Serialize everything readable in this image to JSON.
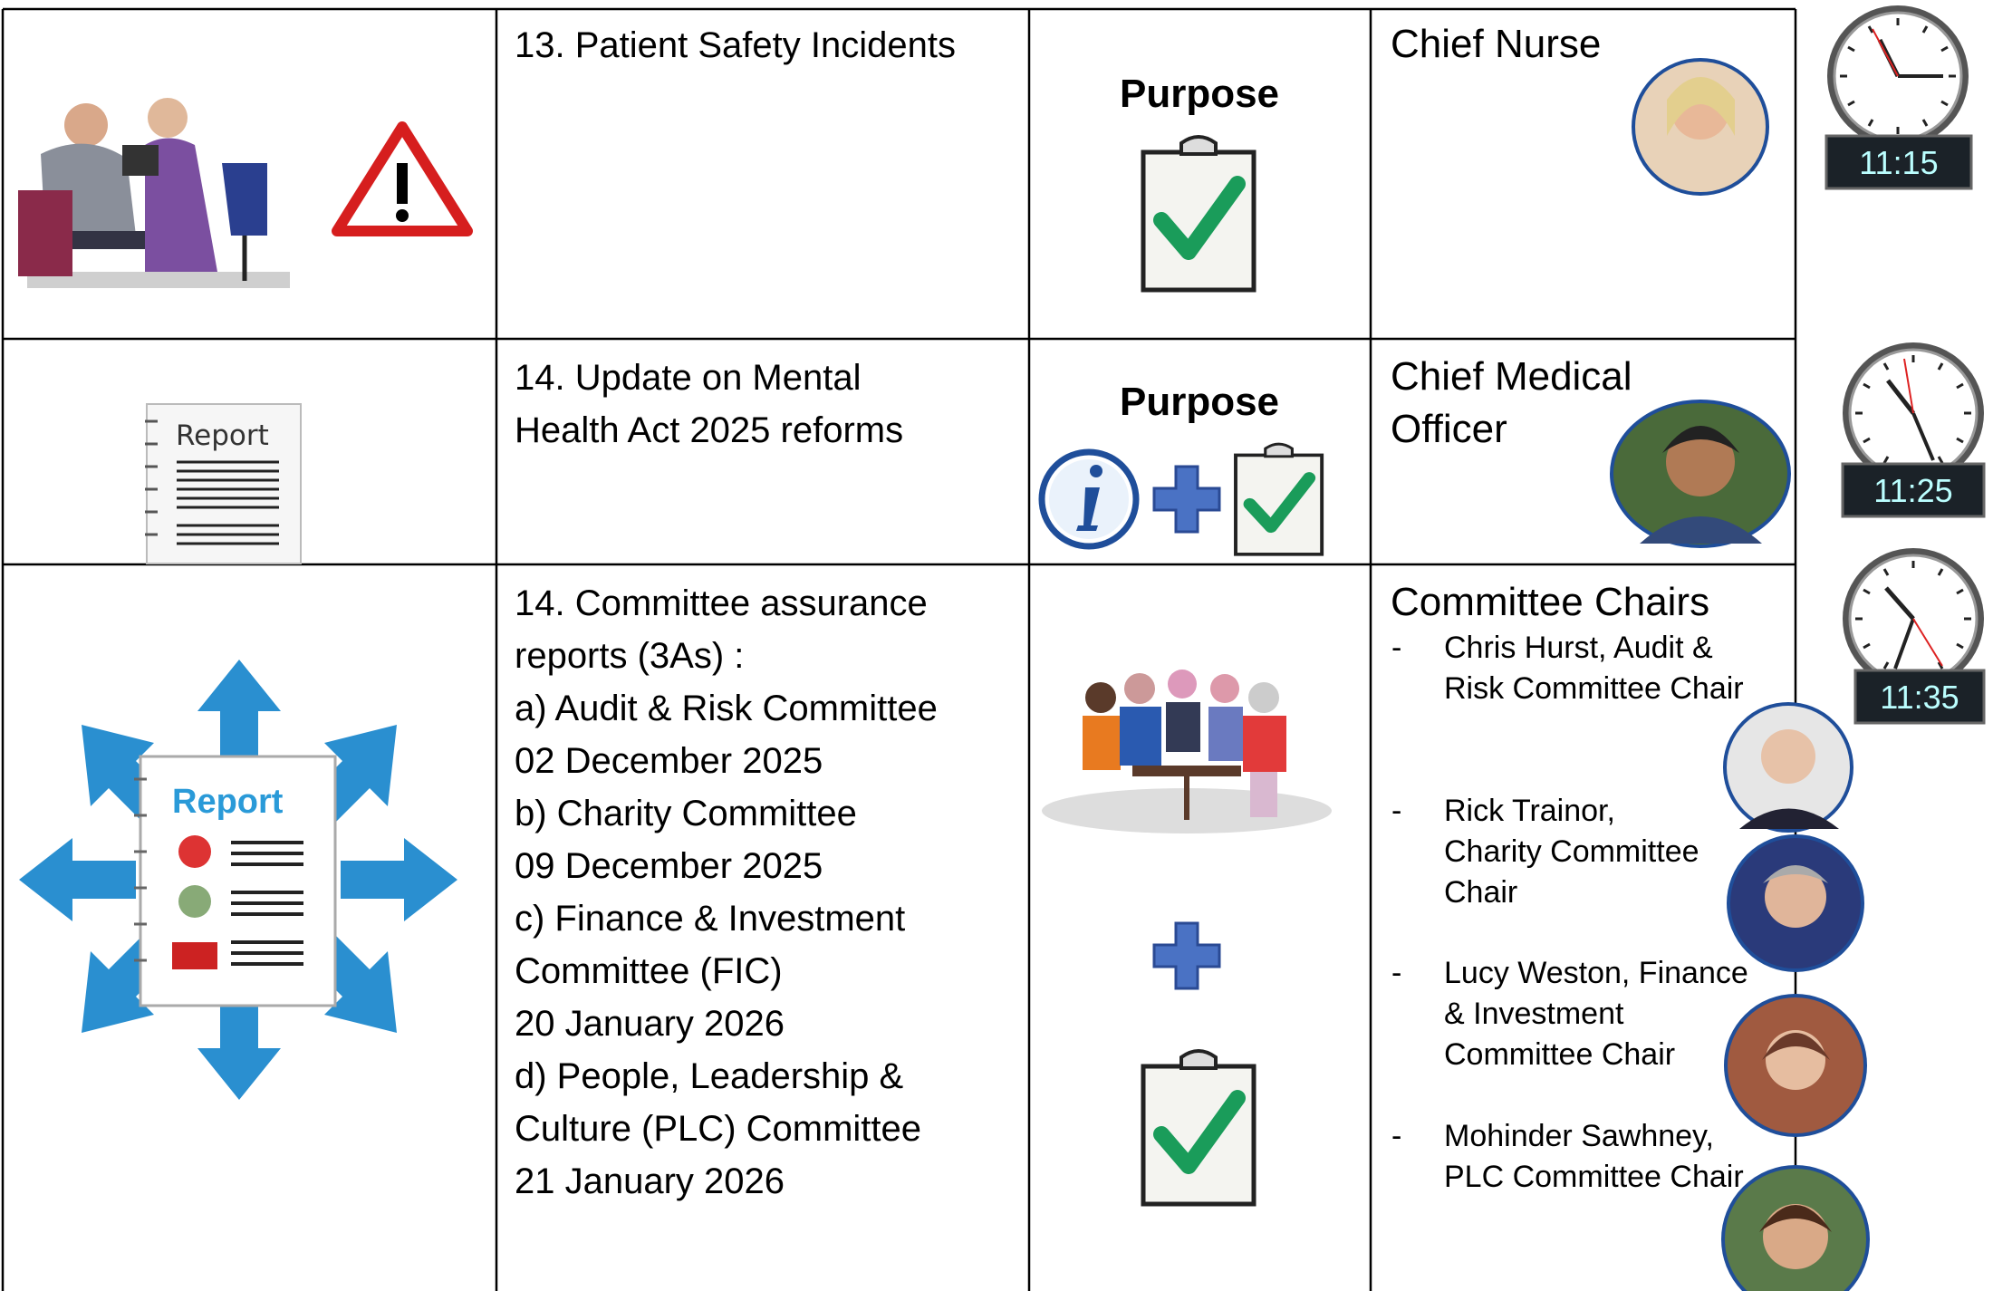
{
  "agenda": [
    {
      "item": [
        "13. Patient Safety Incidents"
      ],
      "purpose": "Purpose",
      "owner": [
        "Chief Nurse"
      ],
      "time": "11:15"
    },
    {
      "icon_label": "Report",
      "item": [
        "14. Update on Mental",
        "Health Act 2025 reforms"
      ],
      "purpose": "Purpose",
      "owner": [
        "Chief Medical",
        "Officer"
      ],
      "time": "11:25"
    },
    {
      "icon_label": "Report",
      "item": [
        "14. Committee assurance",
        "reports (3As) :",
        "a) Audit & Risk Committee",
        "02 December 2025",
        "b) Charity Committee",
        "09 December 2025",
        "c) Finance & Investment",
        "Committee (FIC)",
        "20 January 2026",
        "d) People, Leadership &",
        "Culture (PLC) Committee",
        "21 January 2026"
      ],
      "owner": [
        "Committee Chairs"
      ],
      "time": "11:35",
      "chairs": [
        {
          "bullet": "-",
          "lines": [
            "Chris Hurst, Audit &",
            "Risk Committee Chair"
          ]
        },
        {
          "bullet": "-",
          "lines": [
            "Rick Trainor,",
            "Charity Committee",
            "Chair"
          ]
        },
        {
          "bullet": "-",
          "lines": [
            "Lucy Weston, Finance",
            "& Investment",
            "Committee Chair"
          ]
        },
        {
          "bullet": "-",
          "lines": [
            "Mohinder Sawhney,",
            "PLC Committee Chair"
          ]
        }
      ]
    }
  ]
}
